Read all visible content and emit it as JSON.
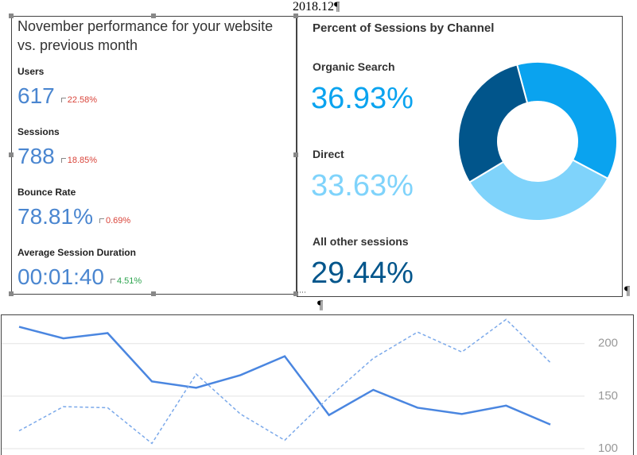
{
  "heading": "2018.12¶",
  "pilcrows": [
    "¶",
    "¶"
  ],
  "metrics_panel": {
    "title": "November performance for your website vs. previous month",
    "metrics": [
      {
        "label": "Users",
        "value": "617",
        "change": "22.58%",
        "trend": "down"
      },
      {
        "label": "Sessions",
        "value": "788",
        "change": "18.85%",
        "trend": "down"
      },
      {
        "label": "Bounce Rate",
        "value": "78.81%",
        "change": "0.69%",
        "trend": "down"
      },
      {
        "label": "Average Session Duration",
        "value": "00:01:40",
        "change": "4.51%",
        "trend": "up"
      }
    ]
  },
  "chart_data": [
    {
      "type": "donut",
      "title": "Percent of Sessions by Channel",
      "categories": [
        "Organic Search",
        "Direct",
        "All other sessions"
      ],
      "values": [
        36.93,
        33.63,
        29.44
      ],
      "value_labels": [
        "36.93%",
        "33.63%",
        "29.44%"
      ],
      "colors": [
        "#0aa3ef",
        "#7fd3fb",
        "#01558b"
      ]
    },
    {
      "type": "line",
      "categories": [
        null,
        null,
        null,
        null,
        null,
        null,
        null,
        null,
        null,
        null,
        null,
        null,
        null
      ],
      "series": [
        {
          "color": "#4a86e0",
          "dashed": false,
          "values": [
            216,
            205,
            210,
            164,
            158,
            170,
            188,
            132,
            156,
            139,
            133,
            141,
            123
          ]
        },
        {
          "color": "#7ba9ea",
          "dashed": true,
          "values": [
            117,
            140,
            139,
            105,
            171,
            133,
            108,
            149,
            186,
            211,
            192,
            223,
            182
          ]
        }
      ],
      "ylim": [
        94,
        227
      ],
      "yticks": [
        100,
        150,
        200
      ],
      "grid": true
    }
  ]
}
